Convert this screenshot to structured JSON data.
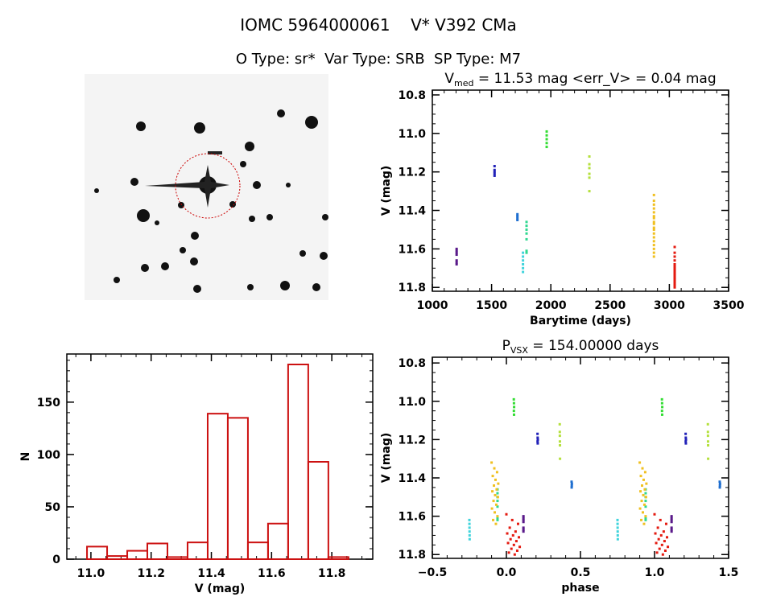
{
  "header": {
    "line1": "IOMC 5964000061    V* V392 CMa",
    "line2": "O Type: sr*  Var Type: SRB  SP Type: M7"
  },
  "chart_data": [
    {
      "type": "scatter",
      "id": "lightcurve",
      "title_main": "V",
      "title_sub": "med",
      "title_rest": " = 11.53 mag <err_V> = 0.04 mag",
      "xlabel": "Barytime (days)",
      "ylabel": "V (mag)",
      "xlim": [
        1000,
        3500
      ],
      "ylim": [
        10.775,
        11.82
      ],
      "y_inverted": true,
      "xticks": [
        1000,
        1500,
        2000,
        2500,
        3000,
        3500
      ],
      "xtick_labels": [
        "1000",
        "1500",
        "2000",
        "2500",
        "3000",
        "3500"
      ],
      "yticks": [
        10.8,
        11.0,
        11.2,
        11.4,
        11.6,
        11.8
      ],
      "ytick_labels": [
        "10.8",
        "11.0",
        "11.2",
        "11.4",
        "11.6",
        "11.8"
      ],
      "series": [
        {
          "color": "#5a1a8a",
          "time": 1205,
          "phase_range": [
            0.115,
            0.12
          ],
          "v": [
            11.6,
            11.61,
            11.62,
            11.63,
            11.66,
            11.67,
            11.68
          ]
        },
        {
          "color": "#2222b8",
          "time": 1525,
          "phase_range": [
            0.21,
            0.212
          ],
          "v": [
            11.17,
            11.19,
            11.2,
            11.21,
            11.22
          ]
        },
        {
          "color": "#1f6fd0",
          "time": 1718,
          "phase_range": [
            0.44,
            0.442
          ],
          "v": [
            11.42,
            11.43,
            11.44,
            11.45
          ]
        },
        {
          "color": "#40d4dc",
          "time": 1765,
          "phase_range": [
            0.75,
            0.752
          ],
          "v": [
            11.62,
            11.64,
            11.66,
            11.68,
            11.7,
            11.72
          ]
        },
        {
          "color": "#30d890",
          "time": 1795,
          "phase_range": [
            0.94,
            0.944
          ],
          "v": [
            11.46,
            11.48,
            11.5,
            11.52,
            11.55,
            11.61,
            11.62
          ]
        },
        {
          "color": "#33dd33",
          "time": 1965,
          "phase_range": [
            0.05,
            0.052
          ],
          "v": [
            10.99,
            11.01,
            11.03,
            11.05,
            11.07
          ]
        },
        {
          "color": "#b4e03c",
          "time": 2325,
          "phase_range": [
            0.36,
            0.362
          ],
          "v": [
            11.12,
            11.16,
            11.18,
            11.21,
            11.23,
            11.3
          ]
        },
        {
          "color": "#f0c020",
          "time": 2870,
          "phase_range": [
            0.9,
            0.945
          ],
          "v": [
            11.32,
            11.35,
            11.37,
            11.39,
            11.41,
            11.43,
            11.44,
            11.46,
            11.47,
            11.49,
            11.5,
            11.52,
            11.54,
            11.56,
            11.58,
            11.6,
            11.62,
            11.64
          ]
        },
        {
          "color": "#e41a10",
          "time": 3045,
          "phase_range": [
            0.0,
            0.09
          ],
          "v": [
            11.59,
            11.62,
            11.64,
            11.66,
            11.68,
            11.69,
            11.7,
            11.71,
            11.72,
            11.73,
            11.74,
            11.75,
            11.76,
            11.77,
            11.78,
            11.79,
            11.8
          ]
        }
      ]
    },
    {
      "type": "bar",
      "id": "histogram",
      "xlabel": "V (mag)",
      "ylabel": "N",
      "xlim": [
        10.92,
        11.936
      ],
      "ylim": [
        0,
        196
      ],
      "xticks": [
        11.0,
        11.2,
        11.4,
        11.6,
        11.8
      ],
      "xtick_labels": [
        "11.0",
        "11.2",
        "11.4",
        "11.6",
        "11.8"
      ],
      "yticks": [
        0,
        50,
        100,
        150
      ],
      "ytick_labels": [
        "0",
        "50",
        "100",
        "150"
      ],
      "bin_start": 10.987,
      "bin_width": 0.0668,
      "counts": [
        12,
        3,
        8,
        15,
        2,
        16,
        139,
        135,
        16,
        34,
        186,
        93,
        2
      ],
      "color": "#cc1111"
    },
    {
      "type": "scatter",
      "id": "phased",
      "title_main": "P",
      "title_sub": "VSX",
      "title_rest": " = 154.00000 days",
      "xlabel": "phase",
      "ylabel": "V (mag)",
      "xlim": [
        -0.5,
        1.5
      ],
      "ylim": [
        10.77,
        11.82
      ],
      "y_inverted": true,
      "xticks": [
        -0.5,
        0.0,
        0.5,
        1.0,
        1.5
      ],
      "xtick_labels": [
        "−0.5",
        "0.0",
        "0.5",
        "1.0",
        "1.5"
      ],
      "yticks": [
        10.8,
        11.0,
        11.2,
        11.4,
        11.6,
        11.8
      ],
      "ytick_labels": [
        "10.8",
        "11.0",
        "11.2",
        "11.4",
        "11.6",
        "11.8"
      ]
    }
  ]
}
